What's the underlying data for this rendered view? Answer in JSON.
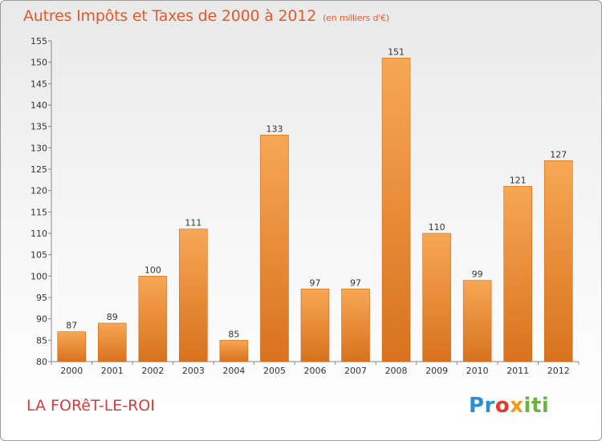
{
  "chart_data": {
    "type": "bar",
    "title": "Autres Impôts et Taxes de 2000 à 2012",
    "subtitle": "(en milliers d'€)",
    "categories": [
      "2000",
      "2001",
      "2002",
      "2003",
      "2004",
      "2005",
      "2006",
      "2007",
      "2008",
      "2009",
      "2010",
      "2011",
      "2012"
    ],
    "values": [
      87,
      89,
      100,
      111,
      85,
      133,
      97,
      97,
      151,
      110,
      99,
      121,
      127
    ],
    "xlabel": "",
    "ylabel": "",
    "ylim": [
      80,
      155
    ],
    "yticks": [
      80,
      85,
      90,
      95,
      100,
      105,
      110,
      115,
      120,
      125,
      130,
      135,
      140,
      145,
      150,
      155
    ],
    "grid": false,
    "bar_color": "#f0923a"
  },
  "footer": {
    "commune": "LA FORêT-LE-ROI"
  },
  "logo": {
    "text": "Proxiti",
    "colors": [
      "#2a8fd6",
      "#e23a2e",
      "#f29a1c",
      "#6db33f"
    ]
  }
}
